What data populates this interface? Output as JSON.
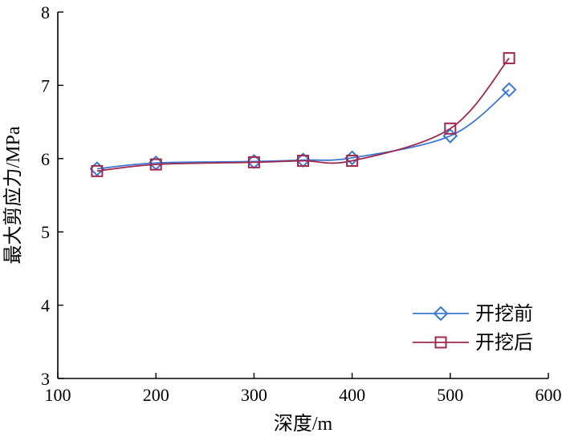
{
  "chart_data": {
    "type": "line",
    "xlabel": "深度/m",
    "ylabel": "最大剪应力/MPa",
    "xlim": [
      100,
      600
    ],
    "ylim": [
      3,
      8
    ],
    "xticks": [
      100,
      200,
      300,
      400,
      500,
      600
    ],
    "yticks": [
      3,
      4,
      5,
      6,
      7,
      8
    ],
    "grid": false,
    "legend": "bottom-right",
    "series": [
      {
        "name": "开挖前",
        "color": "#3a78d4",
        "marker": "diamond",
        "x": [
          140,
          200,
          300,
          350,
          400,
          500,
          560
        ],
        "y": [
          5.86,
          5.94,
          5.96,
          5.98,
          6.01,
          6.31,
          6.94
        ]
      },
      {
        "name": "开挖后",
        "color": "#a0284f",
        "marker": "square",
        "x": [
          140,
          200,
          300,
          350,
          400,
          500,
          560
        ],
        "y": [
          5.83,
          5.92,
          5.95,
          5.97,
          5.97,
          6.41,
          7.37
        ]
      }
    ]
  }
}
